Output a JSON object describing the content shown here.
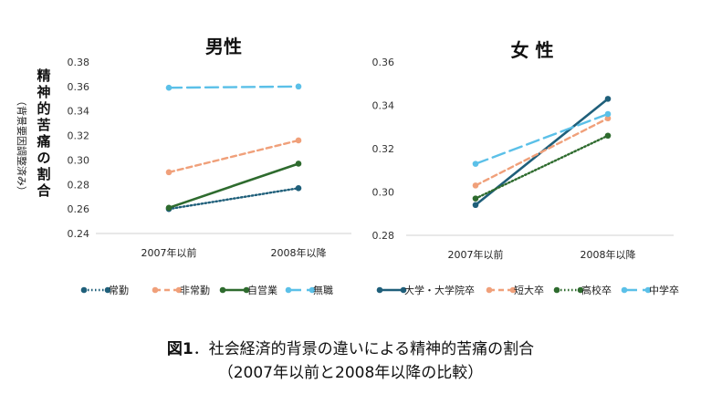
{
  "ylabel_main": "精神的苦痛の割合",
  "ylabel_sub": "（背景要因調整済み）",
  "figure_number": "図1",
  "caption_line1": "．社会経済的背景の違いによる精神的苦痛の割合",
  "caption_line2": "（2007年以前と2008年以降の比較）",
  "chart_data": [
    {
      "type": "line",
      "title": "男性",
      "categories": [
        "2007年以前",
        "2008年以降"
      ],
      "ylim": [
        0.24,
        0.38
      ],
      "yticks": [
        "0.24",
        "0.26",
        "0.28",
        "0.30",
        "0.32",
        "0.34",
        "0.36",
        "0.38"
      ],
      "grid": false,
      "legend_position": "bottom",
      "series": [
        {
          "name": "常勤",
          "values": [
            0.26,
            0.277
          ],
          "color": "#1f5f7a",
          "style": "dotted"
        },
        {
          "name": "非常勤",
          "values": [
            0.29,
            0.316
          ],
          "color": "#f0a07a",
          "style": "dashed"
        },
        {
          "name": "自営業",
          "values": [
            0.261,
            0.297
          ],
          "color": "#2e6b2e",
          "style": "solid"
        },
        {
          "name": "無職",
          "values": [
            0.359,
            0.36
          ],
          "color": "#5bc0e8",
          "style": "longdash"
        }
      ]
    },
    {
      "type": "line",
      "title": "女 性",
      "categories": [
        "2007年以前",
        "2008年以降"
      ],
      "ylim": [
        0.28,
        0.36
      ],
      "yticks": [
        "0.28",
        "0.30",
        "0.32",
        "0.34",
        "0.36"
      ],
      "grid": false,
      "legend_position": "bottom",
      "series": [
        {
          "name": "大学・大学院卒",
          "values": [
            0.294,
            0.343
          ],
          "color": "#1f5f7a",
          "style": "solid"
        },
        {
          "name": "短大卒",
          "values": [
            0.303,
            0.334
          ],
          "color": "#f0a07a",
          "style": "dashed"
        },
        {
          "name": "高校卒",
          "values": [
            0.297,
            0.326
          ],
          "color": "#2e6b2e",
          "style": "dotted"
        },
        {
          "name": "中学卒",
          "values": [
            0.313,
            0.336
          ],
          "color": "#5bc0e8",
          "style": "longdash"
        }
      ]
    }
  ]
}
